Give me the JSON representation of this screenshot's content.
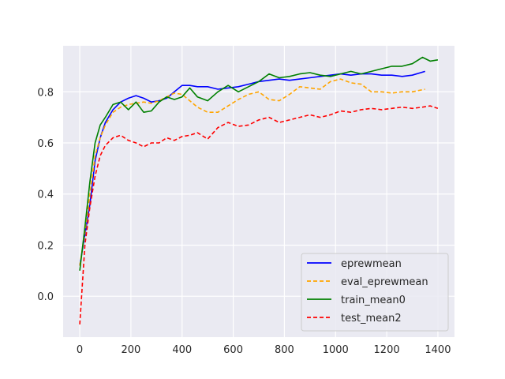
{
  "chart_data": {
    "type": "line",
    "title": "",
    "xlabel": "",
    "ylabel": "",
    "xlim": [
      -65,
      1465
    ],
    "ylim": [
      -0.16,
      0.98
    ],
    "xticks": [
      0,
      200,
      400,
      600,
      800,
      1000,
      1200,
      1400
    ],
    "yticks": [
      0.0,
      0.2,
      0.4,
      0.6,
      0.8
    ],
    "xtick_labels": [
      "0",
      "200",
      "400",
      "600",
      "800",
      "1000",
      "1200",
      "1400"
    ],
    "ytick_labels": [
      "0.0",
      "0.2",
      "0.4",
      "0.6",
      "0.8"
    ],
    "grid": true,
    "background": "#eaeaf2",
    "legend_position": "lower-right",
    "series": [
      {
        "name": "eprewmean",
        "color": "#0000ff",
        "dash": "solid",
        "x": [
          0,
          20,
          40,
          60,
          80,
          100,
          130,
          160,
          190,
          220,
          250,
          280,
          310,
          340,
          370,
          400,
          430,
          460,
          500,
          540,
          580,
          620,
          660,
          700,
          740,
          780,
          820,
          860,
          900,
          940,
          980,
          1020,
          1060,
          1100,
          1140,
          1180,
          1220,
          1260,
          1300,
          1350
        ],
        "y": [
          0.12,
          0.24,
          0.36,
          0.53,
          0.62,
          0.68,
          0.73,
          0.76,
          0.775,
          0.785,
          0.775,
          0.76,
          0.765,
          0.775,
          0.8,
          0.825,
          0.825,
          0.82,
          0.82,
          0.81,
          0.815,
          0.82,
          0.83,
          0.84,
          0.845,
          0.85,
          0.845,
          0.85,
          0.855,
          0.86,
          0.865,
          0.87,
          0.865,
          0.87,
          0.87,
          0.865,
          0.865,
          0.86,
          0.865,
          0.88
        ]
      },
      {
        "name": "eval_eprewmean",
        "color": "#ffa500",
        "dash": "dashed",
        "x": [
          0,
          20,
          40,
          60,
          80,
          100,
          130,
          160,
          190,
          220,
          250,
          280,
          310,
          340,
          370,
          400,
          430,
          460,
          500,
          540,
          580,
          620,
          660,
          700,
          740,
          780,
          820,
          860,
          900,
          940,
          980,
          1020,
          1060,
          1100,
          1140,
          1180,
          1220,
          1260,
          1300,
          1350
        ],
        "y": [
          0.12,
          0.25,
          0.4,
          0.55,
          0.62,
          0.67,
          0.72,
          0.74,
          0.75,
          0.755,
          0.76,
          0.755,
          0.765,
          0.78,
          0.795,
          0.79,
          0.765,
          0.74,
          0.72,
          0.72,
          0.745,
          0.77,
          0.79,
          0.8,
          0.77,
          0.765,
          0.79,
          0.82,
          0.815,
          0.81,
          0.84,
          0.85,
          0.835,
          0.83,
          0.8,
          0.8,
          0.795,
          0.8,
          0.8,
          0.81
        ]
      },
      {
        "name": "train_mean0",
        "color": "#008000",
        "dash": "solid",
        "x": [
          0,
          20,
          40,
          60,
          80,
          100,
          130,
          160,
          190,
          220,
          250,
          280,
          310,
          340,
          370,
          400,
          430,
          460,
          500,
          540,
          580,
          620,
          660,
          700,
          740,
          780,
          820,
          860,
          900,
          940,
          980,
          1020,
          1060,
          1100,
          1140,
          1180,
          1220,
          1260,
          1300,
          1340,
          1370,
          1400
        ],
        "y": [
          0.1,
          0.27,
          0.45,
          0.6,
          0.67,
          0.7,
          0.75,
          0.76,
          0.73,
          0.76,
          0.72,
          0.725,
          0.76,
          0.78,
          0.77,
          0.78,
          0.815,
          0.78,
          0.765,
          0.8,
          0.825,
          0.8,
          0.82,
          0.84,
          0.87,
          0.855,
          0.86,
          0.87,
          0.875,
          0.865,
          0.86,
          0.87,
          0.88,
          0.87,
          0.88,
          0.89,
          0.9,
          0.9,
          0.91,
          0.935,
          0.92,
          0.925
        ]
      },
      {
        "name": "test_mean2",
        "color": "#ff0000",
        "dash": "dashed",
        "x": [
          0,
          20,
          40,
          60,
          80,
          100,
          130,
          160,
          190,
          220,
          250,
          280,
          310,
          340,
          370,
          400,
          430,
          460,
          500,
          540,
          580,
          620,
          660,
          700,
          740,
          780,
          820,
          860,
          900,
          940,
          980,
          1020,
          1060,
          1100,
          1140,
          1180,
          1220,
          1260,
          1300,
          1340,
          1370,
          1400
        ],
        "y": [
          -0.11,
          0.2,
          0.35,
          0.47,
          0.55,
          0.59,
          0.62,
          0.63,
          0.61,
          0.6,
          0.585,
          0.6,
          0.6,
          0.62,
          0.61,
          0.625,
          0.63,
          0.64,
          0.615,
          0.66,
          0.68,
          0.665,
          0.67,
          0.69,
          0.7,
          0.68,
          0.69,
          0.7,
          0.71,
          0.7,
          0.71,
          0.725,
          0.72,
          0.73,
          0.735,
          0.73,
          0.735,
          0.74,
          0.735,
          0.74,
          0.745,
          0.735
        ]
      }
    ]
  }
}
